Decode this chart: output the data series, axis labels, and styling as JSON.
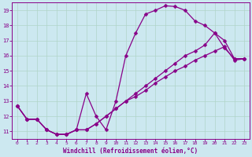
{
  "xlabel": "Windchill (Refroidissement éolien,°C)",
  "bg_color": "#cce8f0",
  "grid_color": "#b0d4c8",
  "line_color": "#880088",
  "markersize": 2.5,
  "linewidth": 0.9,
  "curve1_x": [
    0,
    1,
    2,
    3,
    4,
    5,
    6,
    7,
    8,
    9,
    10,
    11,
    12,
    13,
    14,
    15,
    16,
    17,
    18,
    19,
    20,
    21,
    22,
    23
  ],
  "curve1_y": [
    12.7,
    11.8,
    11.8,
    11.1,
    10.8,
    10.8,
    11.1,
    13.5,
    12.0,
    11.1,
    13.0,
    16.0,
    17.5,
    18.75,
    19.0,
    19.3,
    19.25,
    19.0,
    18.3,
    18.0,
    17.5,
    16.5,
    15.8,
    15.8
  ],
  "curve2_x": [
    0,
    1,
    2,
    3,
    4,
    5,
    6,
    7,
    8,
    9,
    10,
    11,
    12,
    13,
    14,
    15,
    16,
    17,
    18,
    19,
    20,
    21,
    22,
    23
  ],
  "curve2_y": [
    12.7,
    11.8,
    11.8,
    11.1,
    10.8,
    10.8,
    11.1,
    11.1,
    11.5,
    12.0,
    12.5,
    13.0,
    13.5,
    14.0,
    14.5,
    15.0,
    15.5,
    16.0,
    16.3,
    16.7,
    17.5,
    17.0,
    15.8,
    15.8
  ],
  "curve3_x": [
    0,
    1,
    2,
    3,
    4,
    5,
    6,
    7,
    8,
    9,
    10,
    11,
    12,
    13,
    14,
    15,
    16,
    17,
    18,
    19,
    20,
    21,
    22,
    23
  ],
  "curve3_y": [
    12.7,
    11.8,
    11.8,
    11.1,
    10.8,
    10.8,
    11.1,
    11.1,
    11.5,
    12.0,
    12.5,
    13.0,
    13.3,
    13.7,
    14.2,
    14.6,
    15.0,
    15.3,
    15.7,
    16.0,
    16.3,
    16.6,
    15.7,
    15.8
  ],
  "xmin": -0.5,
  "xmax": 23.5,
  "ymin": 10.5,
  "ymax": 19.5,
  "yticks": [
    11,
    12,
    13,
    14,
    15,
    16,
    17,
    18,
    19
  ],
  "xticks": [
    0,
    1,
    2,
    3,
    4,
    5,
    6,
    7,
    8,
    9,
    10,
    11,
    12,
    13,
    14,
    15,
    16,
    17,
    18,
    19,
    20,
    21,
    22,
    23
  ]
}
